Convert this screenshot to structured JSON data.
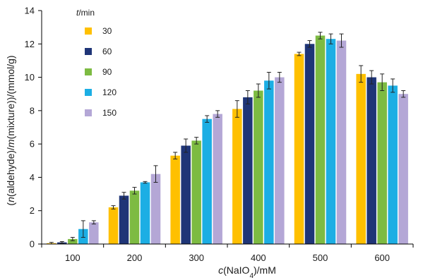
{
  "chart_data": {
    "type": "bar",
    "categories": [
      "100",
      "200",
      "300",
      "400",
      "500",
      "600"
    ],
    "series": [
      {
        "name": "30",
        "color": "#FFC000",
        "values": [
          0.05,
          2.2,
          5.3,
          8.1,
          11.4,
          10.2
        ],
        "errors": [
          0.05,
          0.1,
          0.2,
          0.5,
          0.1,
          0.5
        ]
      },
      {
        "name": "60",
        "color": "#1F3577",
        "values": [
          0.1,
          2.9,
          5.9,
          8.8,
          12.0,
          10.0
        ],
        "errors": [
          0.05,
          0.2,
          0.4,
          0.4,
          0.2,
          0.4
        ]
      },
      {
        "name": "90",
        "color": "#7DBB42",
        "values": [
          0.3,
          3.2,
          6.2,
          9.2,
          12.5,
          9.7
        ],
        "errors": [
          0.1,
          0.2,
          0.2,
          0.4,
          0.2,
          0.5
        ]
      },
      {
        "name": "120",
        "color": "#1CAEE4",
        "values": [
          0.9,
          3.7,
          7.5,
          9.8,
          12.3,
          9.5
        ],
        "errors": [
          0.5,
          0.05,
          0.2,
          0.5,
          0.3,
          0.4
        ]
      },
      {
        "name": "150",
        "color": "#B4A7D6",
        "values": [
          1.3,
          4.2,
          7.8,
          10.0,
          12.2,
          9.0
        ],
        "errors": [
          0.1,
          0.5,
          0.2,
          0.3,
          0.4,
          0.2
        ]
      }
    ],
    "xlabel": {
      "pre": "c",
      "mid": "(NaIO",
      "sub": "4",
      "post": ")/mM"
    },
    "ylabel": {
      "open": "(",
      "n": "n",
      "part1": "(aldehyde)/",
      "m": "m",
      "part2": "(mixture))/(mmol/g)"
    },
    "legend_title": {
      "var": "t",
      "unit": "/min"
    },
    "ylim": [
      0,
      14
    ],
    "yticks": [
      "0",
      "2",
      "4",
      "6",
      "8",
      "10",
      "12",
      "14"
    ],
    "grid": false,
    "legend_position": "top-left"
  }
}
